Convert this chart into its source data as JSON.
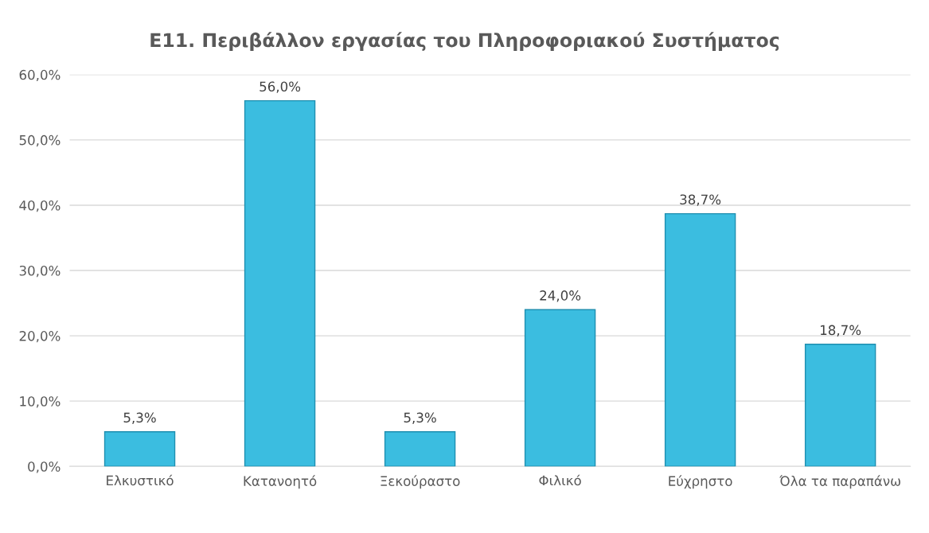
{
  "chart_data": {
    "type": "bar",
    "title": "Ε11. Περιβάλλον εργασίας του Πληροφοριακού Συστήματος",
    "categories": [
      "Ελκυστικό",
      "Κατανοητό",
      "Ξεκούραστο",
      "Φιλικό",
      "Εύχρηστο",
      "Όλα τα παραπάνω"
    ],
    "values": [
      5.3,
      56.0,
      5.3,
      24.0,
      38.7,
      18.7
    ],
    "value_labels": [
      "5,3%",
      "56,0%",
      "5,3%",
      "24,0%",
      "38,7%",
      "18,7%"
    ],
    "color": "#3bbde0",
    "ylim": [
      0,
      60
    ],
    "yticks": [
      {
        "value": 0,
        "label": "0,0%"
      },
      {
        "value": 10,
        "label": "10,0%"
      },
      {
        "value": 20,
        "label": "20,0%"
      },
      {
        "value": 30,
        "label": "30,0%"
      },
      {
        "value": 40,
        "label": "40,0%"
      },
      {
        "value": 50,
        "label": "50,0%"
      },
      {
        "value": 60,
        "label": "60,0%"
      }
    ],
    "grid": "y"
  }
}
